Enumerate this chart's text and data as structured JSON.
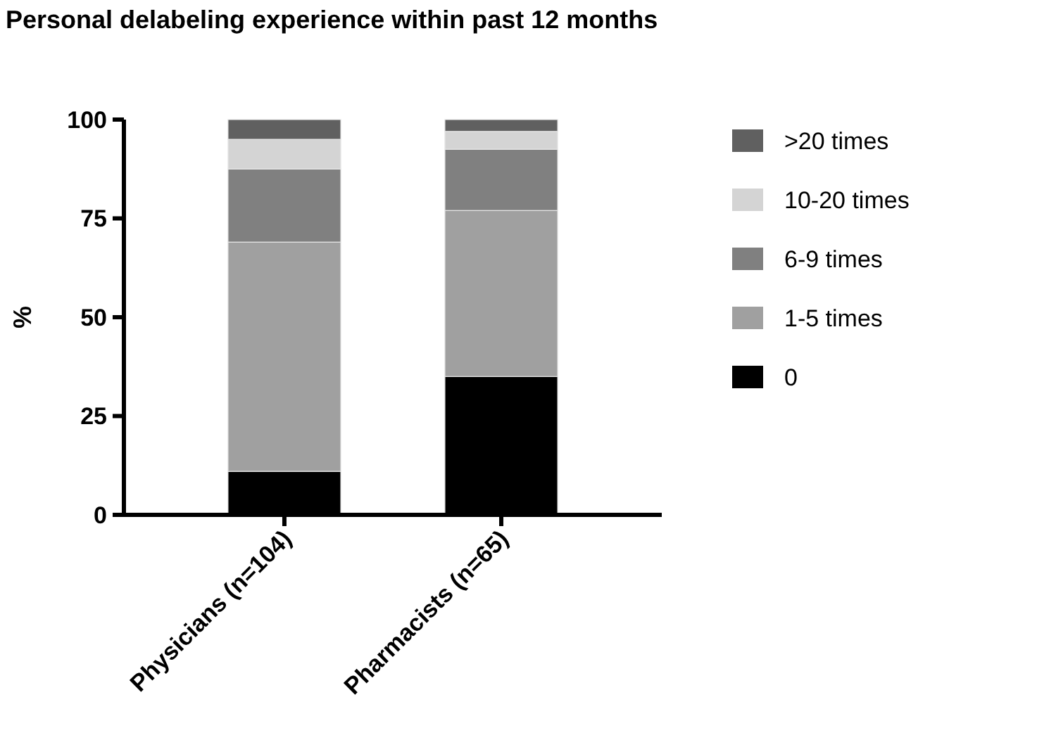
{
  "chart_data": {
    "type": "bar",
    "title": "Personal delabeling experience within past 12 months",
    "ylabel": "%",
    "categories": [
      "Physicians (n=104)",
      "Pharmacists (n=65)"
    ],
    "stacked": true,
    "ylim": [
      0,
      100
    ],
    "yticks": [
      0,
      25,
      50,
      75,
      100
    ],
    "legend": "right",
    "series": [
      {
        "name": "0",
        "color": "#000000",
        "values": [
          11,
          35
        ]
      },
      {
        "name": "1-5 times",
        "color": "#a0a0a0",
        "values": [
          58,
          42
        ]
      },
      {
        "name": "6-9 times",
        "color": "#808080",
        "values": [
          18.5,
          15.5
        ]
      },
      {
        "name": "10-20 times",
        "color": "#d4d4d4",
        "values": [
          7.5,
          4.5
        ]
      },
      {
        "name": ">20 times",
        "color": "#606060",
        "values": [
          5,
          3
        ]
      }
    ]
  }
}
